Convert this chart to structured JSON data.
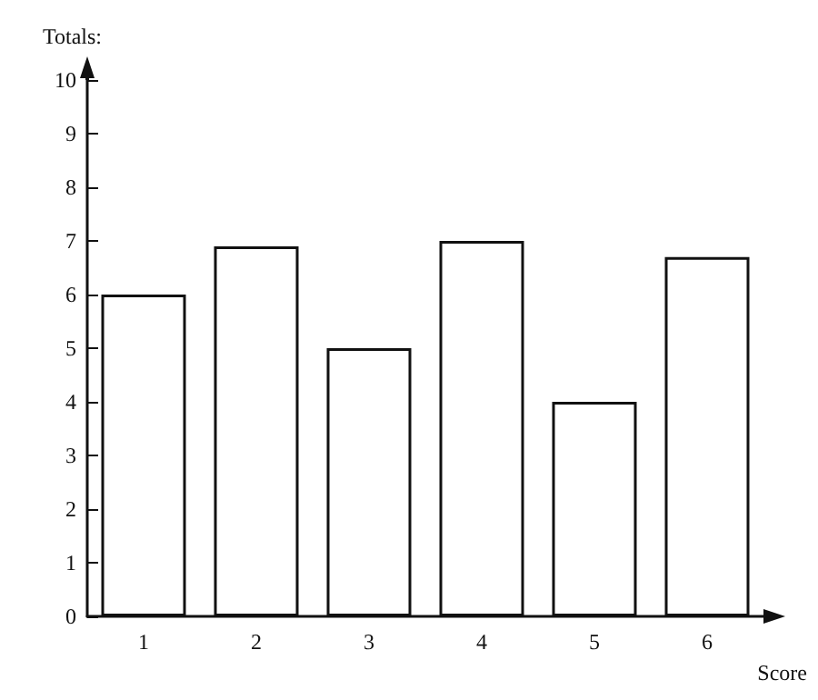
{
  "chart_data": {
    "type": "bar",
    "xlabel": "Score",
    "ylabel": "Totals:",
    "categories": [
      "1",
      "2",
      "3",
      "4",
      "5",
      "6"
    ],
    "values": [
      6,
      6.9,
      5,
      7,
      4,
      6.7
    ],
    "color": "#ffffff",
    "ylim": [
      0,
      10
    ],
    "yticks": [
      0,
      1,
      2,
      3,
      4,
      5,
      6,
      7,
      8,
      9,
      10
    ],
    "grid": false
  }
}
